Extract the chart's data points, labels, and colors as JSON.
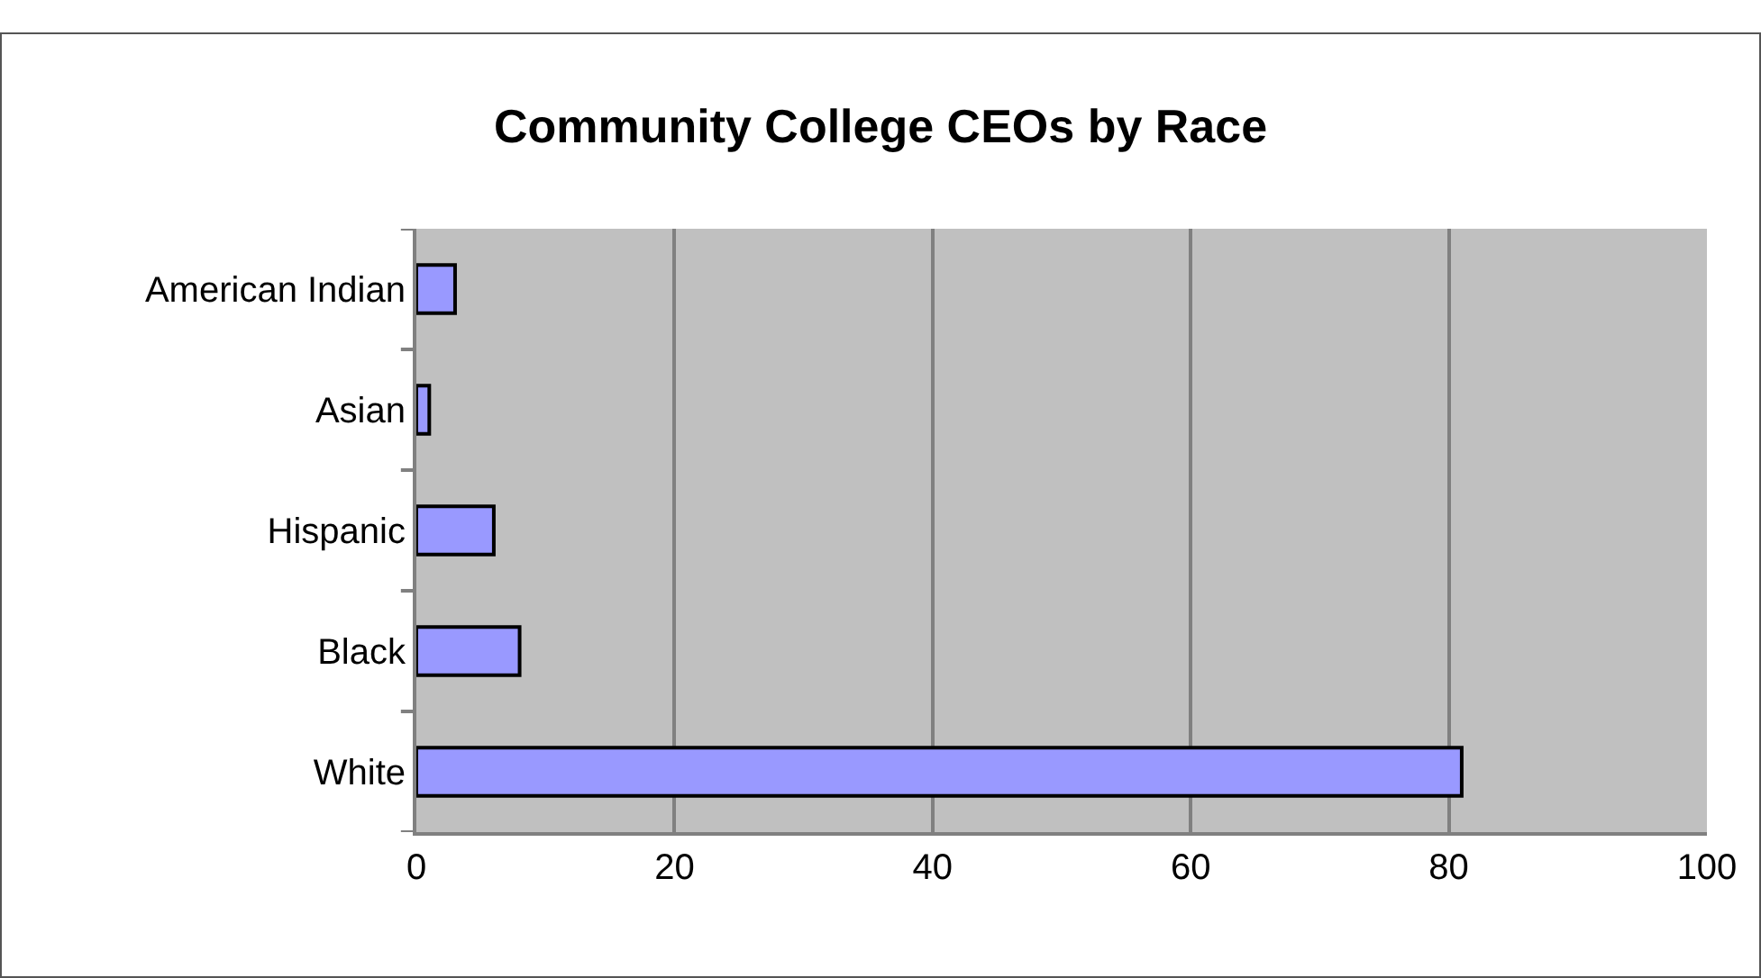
{
  "chart_data": {
    "type": "bar",
    "orientation": "horizontal",
    "title": "Community College CEOs by Race",
    "categories": [
      "American Indian",
      "Asian",
      "Hispanic",
      "Black",
      "White"
    ],
    "values": [
      3,
      1,
      6,
      8,
      81
    ],
    "color": "#9999ff",
    "xlim": [
      0,
      100
    ],
    "xticks": [
      0,
      20,
      40,
      60,
      80,
      100
    ],
    "grid": "x"
  }
}
